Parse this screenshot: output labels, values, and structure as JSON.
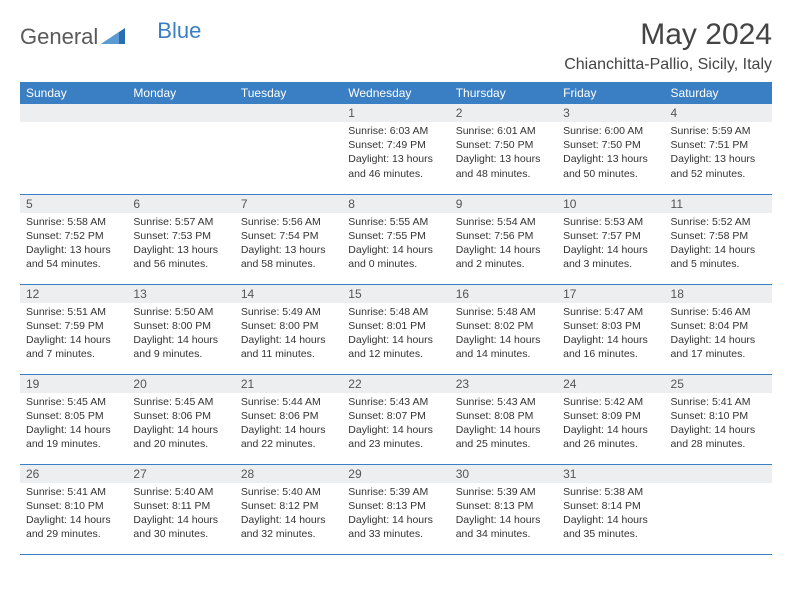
{
  "brand": {
    "part1": "General",
    "part2": "Blue"
  },
  "title": "May 2024",
  "location": "Chianchitta-Pallio, Sicily, Italy",
  "colors": {
    "header_bg": "#3a7fc4",
    "header_text": "#ffffff",
    "daynum_bg": "#eceef0",
    "rule": "#3a7fc4",
    "page_bg": "#ffffff"
  },
  "weekdays": [
    "Sunday",
    "Monday",
    "Tuesday",
    "Wednesday",
    "Thursday",
    "Friday",
    "Saturday"
  ],
  "weeks": [
    [
      {
        "n": "",
        "sunrise": "",
        "sunset": "",
        "daylight1": "",
        "daylight2": ""
      },
      {
        "n": "",
        "sunrise": "",
        "sunset": "",
        "daylight1": "",
        "daylight2": ""
      },
      {
        "n": "",
        "sunrise": "",
        "sunset": "",
        "daylight1": "",
        "daylight2": ""
      },
      {
        "n": "1",
        "sunrise": "Sunrise: 6:03 AM",
        "sunset": "Sunset: 7:49 PM",
        "daylight1": "Daylight: 13 hours",
        "daylight2": "and 46 minutes."
      },
      {
        "n": "2",
        "sunrise": "Sunrise: 6:01 AM",
        "sunset": "Sunset: 7:50 PM",
        "daylight1": "Daylight: 13 hours",
        "daylight2": "and 48 minutes."
      },
      {
        "n": "3",
        "sunrise": "Sunrise: 6:00 AM",
        "sunset": "Sunset: 7:50 PM",
        "daylight1": "Daylight: 13 hours",
        "daylight2": "and 50 minutes."
      },
      {
        "n": "4",
        "sunrise": "Sunrise: 5:59 AM",
        "sunset": "Sunset: 7:51 PM",
        "daylight1": "Daylight: 13 hours",
        "daylight2": "and 52 minutes."
      }
    ],
    [
      {
        "n": "5",
        "sunrise": "Sunrise: 5:58 AM",
        "sunset": "Sunset: 7:52 PM",
        "daylight1": "Daylight: 13 hours",
        "daylight2": "and 54 minutes."
      },
      {
        "n": "6",
        "sunrise": "Sunrise: 5:57 AM",
        "sunset": "Sunset: 7:53 PM",
        "daylight1": "Daylight: 13 hours",
        "daylight2": "and 56 minutes."
      },
      {
        "n": "7",
        "sunrise": "Sunrise: 5:56 AM",
        "sunset": "Sunset: 7:54 PM",
        "daylight1": "Daylight: 13 hours",
        "daylight2": "and 58 minutes."
      },
      {
        "n": "8",
        "sunrise": "Sunrise: 5:55 AM",
        "sunset": "Sunset: 7:55 PM",
        "daylight1": "Daylight: 14 hours",
        "daylight2": "and 0 minutes."
      },
      {
        "n": "9",
        "sunrise": "Sunrise: 5:54 AM",
        "sunset": "Sunset: 7:56 PM",
        "daylight1": "Daylight: 14 hours",
        "daylight2": "and 2 minutes."
      },
      {
        "n": "10",
        "sunrise": "Sunrise: 5:53 AM",
        "sunset": "Sunset: 7:57 PM",
        "daylight1": "Daylight: 14 hours",
        "daylight2": "and 3 minutes."
      },
      {
        "n": "11",
        "sunrise": "Sunrise: 5:52 AM",
        "sunset": "Sunset: 7:58 PM",
        "daylight1": "Daylight: 14 hours",
        "daylight2": "and 5 minutes."
      }
    ],
    [
      {
        "n": "12",
        "sunrise": "Sunrise: 5:51 AM",
        "sunset": "Sunset: 7:59 PM",
        "daylight1": "Daylight: 14 hours",
        "daylight2": "and 7 minutes."
      },
      {
        "n": "13",
        "sunrise": "Sunrise: 5:50 AM",
        "sunset": "Sunset: 8:00 PM",
        "daylight1": "Daylight: 14 hours",
        "daylight2": "and 9 minutes."
      },
      {
        "n": "14",
        "sunrise": "Sunrise: 5:49 AM",
        "sunset": "Sunset: 8:00 PM",
        "daylight1": "Daylight: 14 hours",
        "daylight2": "and 11 minutes."
      },
      {
        "n": "15",
        "sunrise": "Sunrise: 5:48 AM",
        "sunset": "Sunset: 8:01 PM",
        "daylight1": "Daylight: 14 hours",
        "daylight2": "and 12 minutes."
      },
      {
        "n": "16",
        "sunrise": "Sunrise: 5:48 AM",
        "sunset": "Sunset: 8:02 PM",
        "daylight1": "Daylight: 14 hours",
        "daylight2": "and 14 minutes."
      },
      {
        "n": "17",
        "sunrise": "Sunrise: 5:47 AM",
        "sunset": "Sunset: 8:03 PM",
        "daylight1": "Daylight: 14 hours",
        "daylight2": "and 16 minutes."
      },
      {
        "n": "18",
        "sunrise": "Sunrise: 5:46 AM",
        "sunset": "Sunset: 8:04 PM",
        "daylight1": "Daylight: 14 hours",
        "daylight2": "and 17 minutes."
      }
    ],
    [
      {
        "n": "19",
        "sunrise": "Sunrise: 5:45 AM",
        "sunset": "Sunset: 8:05 PM",
        "daylight1": "Daylight: 14 hours",
        "daylight2": "and 19 minutes."
      },
      {
        "n": "20",
        "sunrise": "Sunrise: 5:45 AM",
        "sunset": "Sunset: 8:06 PM",
        "daylight1": "Daylight: 14 hours",
        "daylight2": "and 20 minutes."
      },
      {
        "n": "21",
        "sunrise": "Sunrise: 5:44 AM",
        "sunset": "Sunset: 8:06 PM",
        "daylight1": "Daylight: 14 hours",
        "daylight2": "and 22 minutes."
      },
      {
        "n": "22",
        "sunrise": "Sunrise: 5:43 AM",
        "sunset": "Sunset: 8:07 PM",
        "daylight1": "Daylight: 14 hours",
        "daylight2": "and 23 minutes."
      },
      {
        "n": "23",
        "sunrise": "Sunrise: 5:43 AM",
        "sunset": "Sunset: 8:08 PM",
        "daylight1": "Daylight: 14 hours",
        "daylight2": "and 25 minutes."
      },
      {
        "n": "24",
        "sunrise": "Sunrise: 5:42 AM",
        "sunset": "Sunset: 8:09 PM",
        "daylight1": "Daylight: 14 hours",
        "daylight2": "and 26 minutes."
      },
      {
        "n": "25",
        "sunrise": "Sunrise: 5:41 AM",
        "sunset": "Sunset: 8:10 PM",
        "daylight1": "Daylight: 14 hours",
        "daylight2": "and 28 minutes."
      }
    ],
    [
      {
        "n": "26",
        "sunrise": "Sunrise: 5:41 AM",
        "sunset": "Sunset: 8:10 PM",
        "daylight1": "Daylight: 14 hours",
        "daylight2": "and 29 minutes."
      },
      {
        "n": "27",
        "sunrise": "Sunrise: 5:40 AM",
        "sunset": "Sunset: 8:11 PM",
        "daylight1": "Daylight: 14 hours",
        "daylight2": "and 30 minutes."
      },
      {
        "n": "28",
        "sunrise": "Sunrise: 5:40 AM",
        "sunset": "Sunset: 8:12 PM",
        "daylight1": "Daylight: 14 hours",
        "daylight2": "and 32 minutes."
      },
      {
        "n": "29",
        "sunrise": "Sunrise: 5:39 AM",
        "sunset": "Sunset: 8:13 PM",
        "daylight1": "Daylight: 14 hours",
        "daylight2": "and 33 minutes."
      },
      {
        "n": "30",
        "sunrise": "Sunrise: 5:39 AM",
        "sunset": "Sunset: 8:13 PM",
        "daylight1": "Daylight: 14 hours",
        "daylight2": "and 34 minutes."
      },
      {
        "n": "31",
        "sunrise": "Sunrise: 5:38 AM",
        "sunset": "Sunset: 8:14 PM",
        "daylight1": "Daylight: 14 hours",
        "daylight2": "and 35 minutes."
      },
      {
        "n": "",
        "sunrise": "",
        "sunset": "",
        "daylight1": "",
        "daylight2": ""
      }
    ]
  ]
}
